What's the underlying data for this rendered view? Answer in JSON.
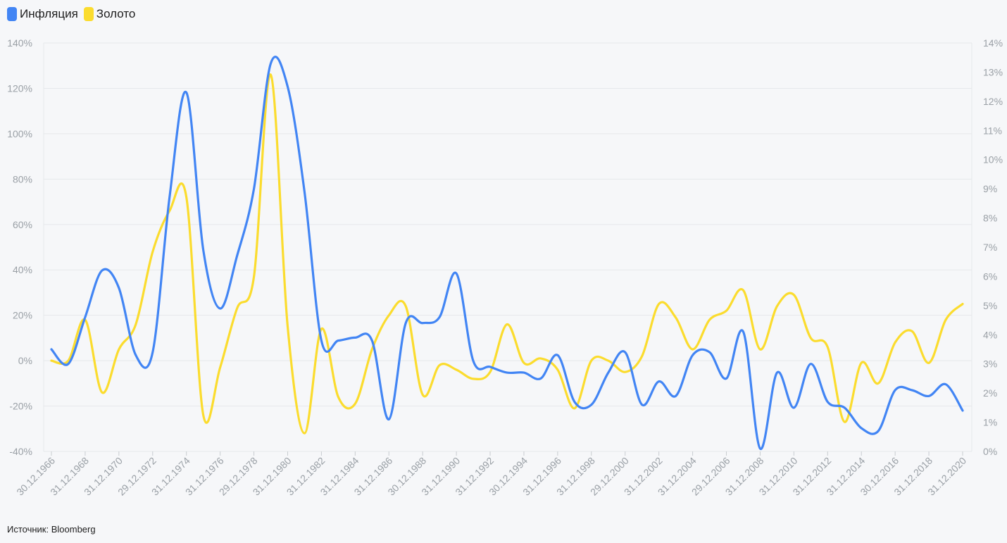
{
  "legend": [
    {
      "label": "Инфляция",
      "color": "#4285f4"
    },
    {
      "label": "Золото",
      "color": "#fbdc2e"
    }
  ],
  "source": "Источник: Bloomberg",
  "chart_data": {
    "type": "line",
    "left_axis": {
      "ticks": [
        "-40%",
        "-20%",
        "0%",
        "20%",
        "40%",
        "60%",
        "80%",
        "100%",
        "120%",
        "140%"
      ],
      "min": -40,
      "max": 140,
      "series": "Золото"
    },
    "right_axis": {
      "ticks": [
        "0%",
        "1%",
        "2%",
        "3%",
        "4%",
        "5%",
        "6%",
        "7%",
        "8%",
        "9%",
        "10%",
        "11%",
        "12%",
        "13%",
        "14%"
      ],
      "min": 0,
      "max": 14,
      "series": "Инфляция"
    },
    "x_tick_labels": [
      "30.12.1966",
      "31.12.1968",
      "31.12.1970",
      "29.12.1972",
      "31.12.1974",
      "31.12.1976",
      "29.12.1978",
      "31.12.1980",
      "31.12.1982",
      "31.12.1984",
      "31.12.1986",
      "30.12.1988",
      "31.12.1990",
      "31.12.1992",
      "30.12.1994",
      "31.12.1996",
      "31.12.1998",
      "29.12.2000",
      "31.12.2002",
      "31.12.2004",
      "29.12.2006",
      "31.12.2008",
      "31.12.2010",
      "31.12.2012",
      "31.12.2014",
      "30.12.2016",
      "31.12.2018",
      "31.12.2020"
    ],
    "x": [
      1966,
      1967,
      1968,
      1969,
      1970,
      1971,
      1972,
      1973,
      1974,
      1975,
      1976,
      1977,
      1978,
      1979,
      1980,
      1981,
      1982,
      1983,
      1984,
      1985,
      1986,
      1987,
      1988,
      1989,
      1990,
      1991,
      1992,
      1993,
      1994,
      1995,
      1996,
      1997,
      1998,
      1999,
      2000,
      2001,
      2002,
      2003,
      2004,
      2005,
      2006,
      2007,
      2008,
      2009,
      2010,
      2011,
      2012,
      2013,
      2014,
      2015,
      2016,
      2017,
      2018,
      2019,
      2020
    ],
    "series": [
      {
        "name": "Инфляция",
        "axis": "right",
        "color": "#4285f4",
        "values": [
          3.5,
          3.0,
          4.6,
          6.2,
          5.6,
          3.3,
          3.4,
          8.7,
          12.3,
          6.9,
          4.9,
          6.7,
          9.0,
          13.3,
          12.5,
          8.9,
          3.8,
          3.8,
          3.9,
          3.8,
          1.1,
          4.4,
          4.4,
          4.6,
          6.1,
          3.1,
          2.9,
          2.7,
          2.7,
          2.5,
          3.3,
          1.7,
          1.6,
          2.7,
          3.4,
          1.6,
          2.4,
          1.9,
          3.3,
          3.4,
          2.5,
          4.1,
          0.1,
          2.7,
          1.5,
          3.0,
          1.7,
          1.5,
          0.8,
          0.7,
          2.1,
          2.1,
          1.9,
          2.3,
          1.4
        ]
      },
      {
        "name": "Золото",
        "axis": "left",
        "color": "#fbdc2e",
        "values": [
          0,
          0,
          18,
          -14,
          5,
          16,
          48,
          66,
          72,
          -24,
          -3,
          23,
          37,
          126,
          15,
          -32,
          14,
          -16,
          -19,
          5,
          20,
          24,
          -15,
          -2,
          -4,
          -8,
          -5,
          16,
          -1,
          1,
          -4,
          -21,
          0,
          0,
          -5,
          2,
          25,
          19,
          5,
          18,
          22,
          31,
          5,
          24,
          29,
          10,
          6,
          -27,
          -1,
          -10,
          8,
          13,
          -1,
          18,
          25
        ]
      }
    ]
  }
}
